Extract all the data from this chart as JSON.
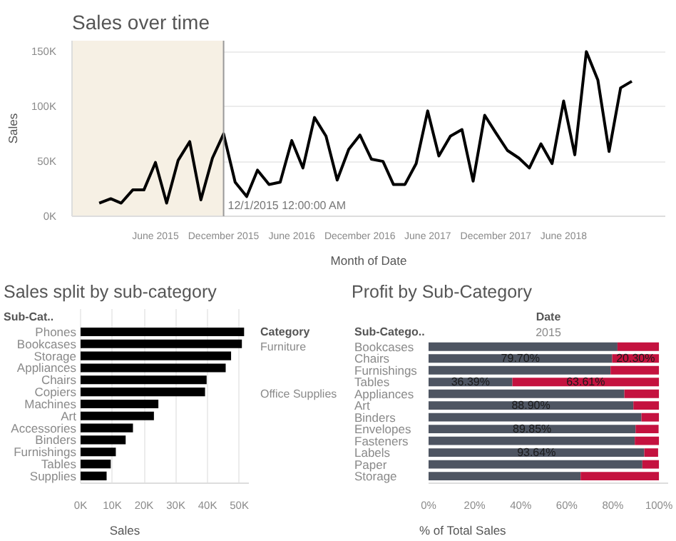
{
  "chart_data": [
    {
      "type": "line",
      "title": "Sales over time",
      "xlabel": "Month of Date",
      "ylabel": "Sales",
      "x": [
        "2015-01-01",
        "2015-02-01",
        "2015-03-01",
        "2015-04-01",
        "2015-05-01",
        "2015-06-01",
        "2015-07-01",
        "2015-08-01",
        "2015-09-01",
        "2015-10-01",
        "2015-11-01",
        "2015-12-01",
        "2016-01-01",
        "2016-02-01",
        "2016-03-01",
        "2016-04-01",
        "2016-05-01",
        "2016-06-01",
        "2016-07-01",
        "2016-08-01",
        "2016-09-01",
        "2016-10-01",
        "2016-11-01",
        "2016-12-01",
        "2017-01-01",
        "2017-02-01",
        "2017-03-01",
        "2017-04-01",
        "2017-05-01",
        "2017-06-01",
        "2017-07-01",
        "2017-08-01",
        "2017-09-01",
        "2017-10-01",
        "2017-11-01",
        "2017-12-01",
        "2018-01-01",
        "2018-02-01",
        "2018-03-01",
        "2018-04-01",
        "2018-05-01",
        "2018-06-01",
        "2018-07-01",
        "2018-08-01",
        "2018-09-01",
        "2018-10-01",
        "2018-11-01",
        "2018-12-01"
      ],
      "series": [
        {
          "color": "#000000",
          "values": [
            12000,
            16000,
            12000,
            24000,
            24000,
            49000,
            12000,
            51000,
            68000,
            15000,
            53000,
            75000,
            31000,
            18000,
            42000,
            29000,
            31000,
            69000,
            44000,
            90000,
            73000,
            33000,
            61000,
            74000,
            52000,
            50000,
            29000,
            29000,
            48000,
            96000,
            55000,
            73000,
            79000,
            32000,
            92000,
            76000,
            60000,
            53000,
            44000,
            66000,
            48000,
            105000,
            56000,
            150000,
            124000,
            59000,
            117000,
            123000
          ]
        }
      ],
      "xlim": [
        "2014-10-20",
        "2019-03-01"
      ],
      "xticks": [
        {
          "value": "2015-06-01",
          "label": "June 2015"
        },
        {
          "value": "2015-12-01",
          "label": "December 2015"
        },
        {
          "value": "2016-06-01",
          "label": "June 2016"
        },
        {
          "value": "2016-12-01",
          "label": "December 2016"
        },
        {
          "value": "2017-06-01",
          "label": "June 2017"
        },
        {
          "value": "2017-12-01",
          "label": "December 2017"
        },
        {
          "value": "2018-06-01",
          "label": "June 2018"
        }
      ],
      "ylim": [
        0,
        160000
      ],
      "yticks": [
        {
          "value": 0,
          "label": "0K"
        },
        {
          "value": 50000,
          "label": "50K"
        },
        {
          "value": 100000,
          "label": "100K"
        },
        {
          "value": 150000,
          "label": "150K"
        }
      ],
      "grid": "y",
      "ref_lines": [
        {
          "axis": "x",
          "value": "2015-12-01",
          "label": "12/1/2015 12:00:00 AM",
          "color": "#999999"
        }
      ],
      "bands": [
        {
          "axis": "x",
          "from": "2014-10-20",
          "to": "2015-12-01",
          "color": "#f6f0e4"
        }
      ]
    },
    {
      "type": "bar",
      "orientation": "horizontal",
      "title": "Sales split by sub-category",
      "xlabel": "Sales",
      "ylabel": "Sub-Cat..",
      "categories": [
        "Phones",
        "Bookcases",
        "Storage",
        "Appliances",
        "Chairs",
        "Copiers",
        "Machines",
        "Art",
        "Accessories",
        "Binders",
        "Furnishings",
        "Tables",
        "Supplies"
      ],
      "values": [
        51500,
        50800,
        47400,
        45700,
        39700,
        39200,
        24500,
        23100,
        16500,
        14200,
        11100,
        9500,
        8200
      ],
      "color": "#000000",
      "xlim": [
        0,
        53000
      ],
      "xticks": [
        {
          "value": 0,
          "label": "0K"
        },
        {
          "value": 10000,
          "label": "10K"
        },
        {
          "value": 20000,
          "label": "20K"
        },
        {
          "value": 30000,
          "label": "30K"
        },
        {
          "value": 40000,
          "label": "40K"
        },
        {
          "value": 50000,
          "label": "50K"
        }
      ],
      "grid": "x"
    },
    {
      "type": "bar",
      "orientation": "horizontal",
      "stacked": true,
      "title": "Profit by Sub-Category",
      "xlabel": "% of Total Sales",
      "ylabel": "Sub-Catego..",
      "categories": [
        "Bookcases",
        "Chairs",
        "Furnishings",
        "Tables",
        "Appliances",
        "Art",
        "Binders",
        "Envelopes",
        "Fasteners",
        "Labels",
        "Paper",
        "Storage"
      ],
      "series": [
        {
          "color": "#4e5562",
          "values": [
            82,
            79.7,
            79,
            36.39,
            85,
            88.9,
            92.4,
            89.85,
            89.5,
            93.64,
            92.8,
            66
          ],
          "value_labels": [
            null,
            "79.70%",
            null,
            "36.39%",
            null,
            "88.90%",
            null,
            "89.85%",
            null,
            "93.64%",
            null,
            null
          ]
        },
        {
          "color": "#c4123f",
          "values": [
            18,
            20.3,
            21,
            63.61,
            15,
            11.1,
            7.6,
            10,
            10.5,
            6,
            7.2,
            34
          ],
          "value_labels": [
            null,
            "20.30%",
            null,
            "63.61%",
            null,
            null,
            null,
            null,
            null,
            null,
            null,
            null
          ]
        }
      ],
      "xlim": [
        0,
        104
      ],
      "xticks": [
        {
          "value": 0,
          "label": "0%"
        },
        {
          "value": 20,
          "label": "20%"
        },
        {
          "value": 40,
          "label": "40%"
        },
        {
          "value": 60,
          "label": "60%"
        },
        {
          "value": 80,
          "label": "80%"
        },
        {
          "value": 100,
          "label": "100%"
        }
      ],
      "annotations": [
        "Category",
        "Date",
        "2015",
        "Furniture",
        "Office Supplies"
      ]
    }
  ]
}
